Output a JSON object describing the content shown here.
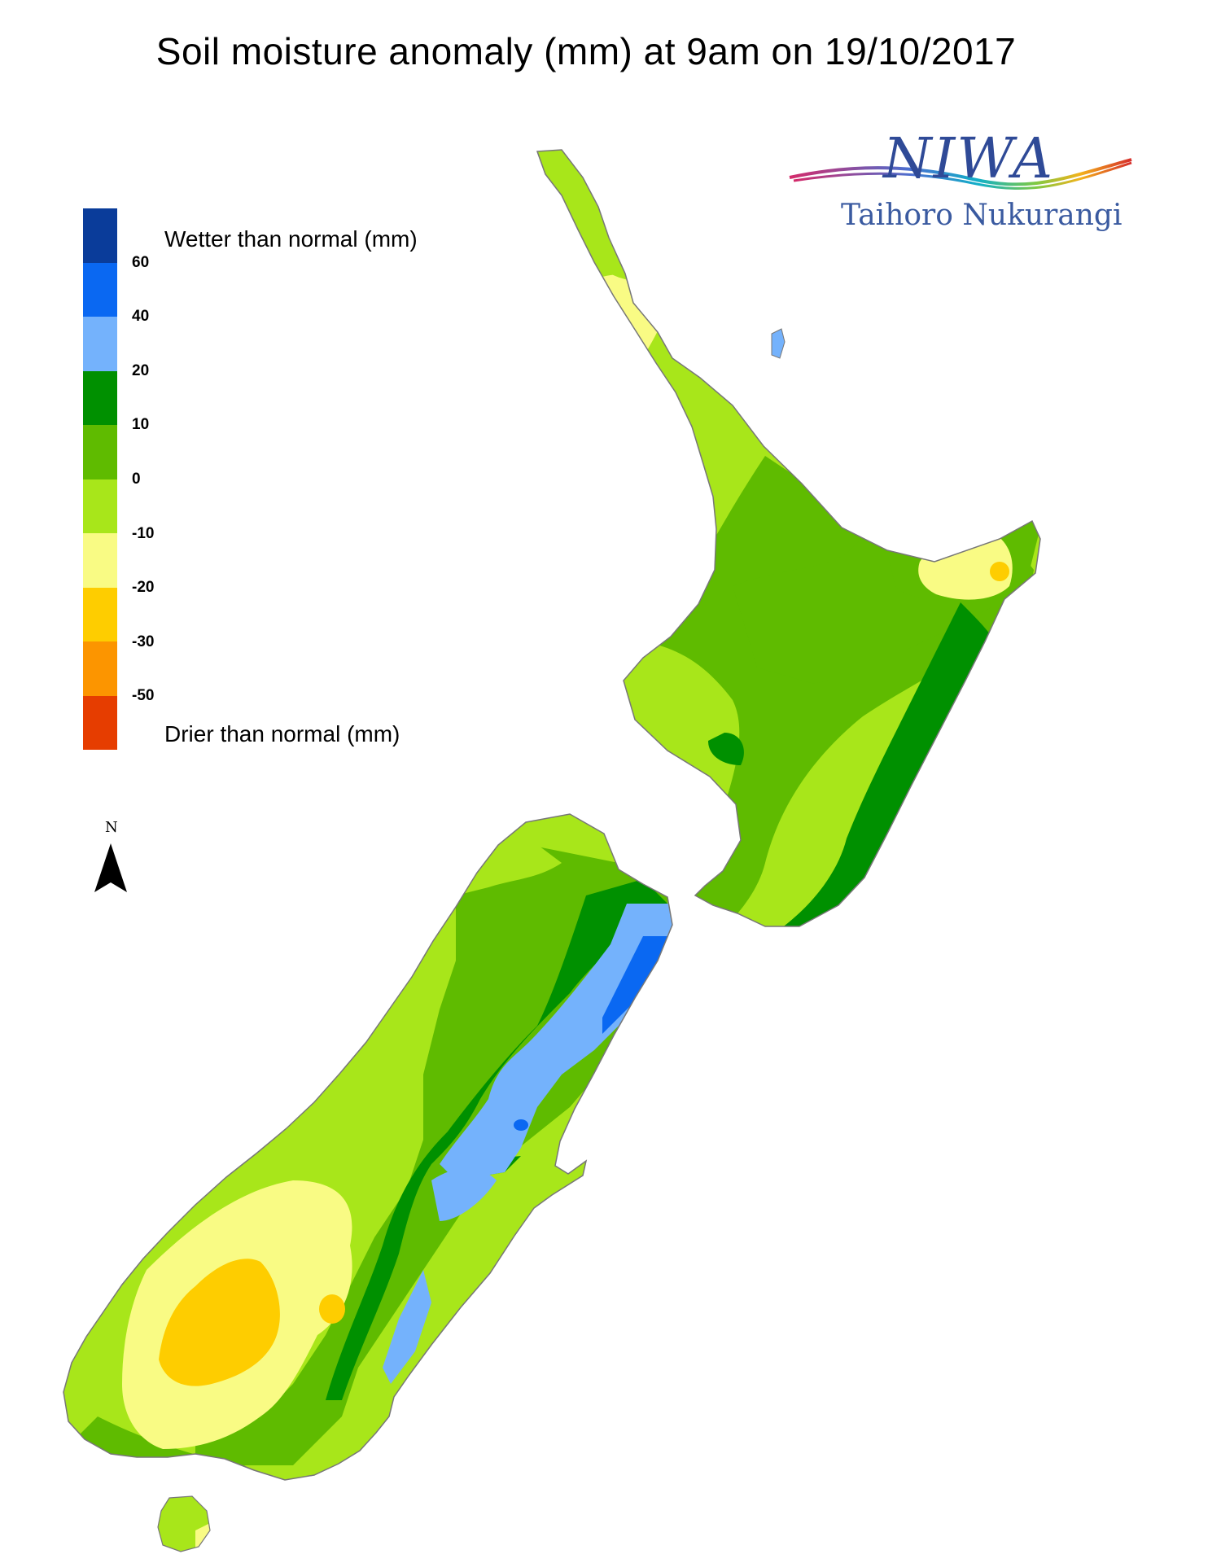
{
  "title": "Soil moisture anomaly (mm) at 9am on 19/10/2017",
  "legend": {
    "wetter_label": "Wetter than normal (mm)",
    "drier_label": "Drier than normal (mm)",
    "colors": [
      "#0a3c9a",
      "#0a68f2",
      "#74b2fc",
      "#009000",
      "#5fbb00",
      "#a8e61a",
      "#f9fb84",
      "#fecd00",
      "#fc9500",
      "#e63d00"
    ],
    "ticks": [
      "60",
      "40",
      "20",
      "10",
      "0",
      "-10",
      "-20",
      "-30",
      "-50"
    ]
  },
  "north_arrow": {
    "letter": "N",
    "icon": "north-arrow-icon"
  },
  "logo": {
    "name": "NIWA",
    "subtitle": "Taihoro Nukurangi"
  },
  "map_regions": {
    "north_island": "North Island",
    "south_island": "South Island",
    "stewart_island": "Stewart Island"
  }
}
